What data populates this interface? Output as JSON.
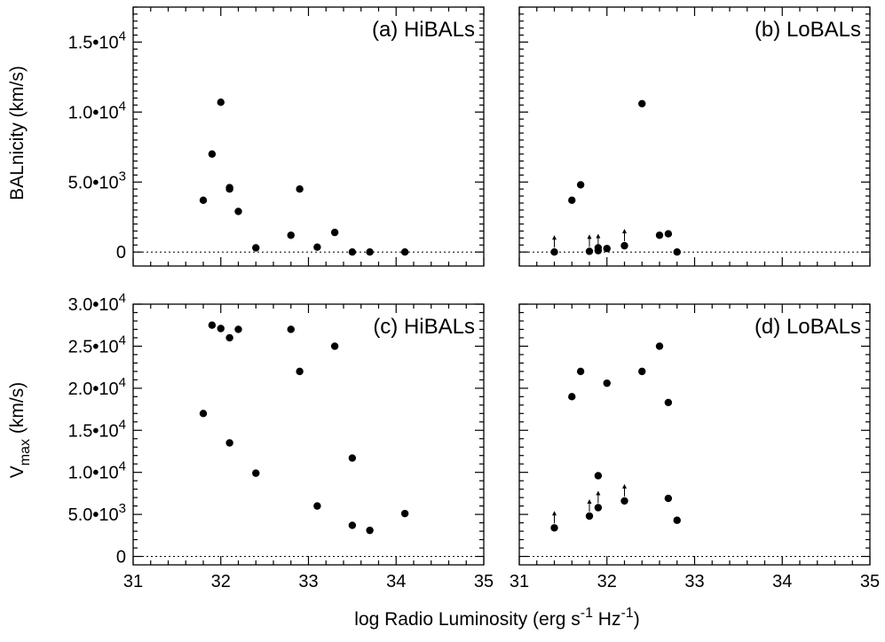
{
  "figure": {
    "xlabel": "log Radio Luminosity (erg s",
    "xlabel_sup1": "-1",
    "xlabel_mid": " Hz",
    "xlabel_sup2": "-1",
    "xlabel_end": ")",
    "ylabel_top": "BALnicity (km/s)",
    "ylabel_bottom_main": "V",
    "ylabel_bottom_sub": "max",
    "ylabel_bottom_unit": " (km/s)"
  },
  "chart_data": [
    {
      "id": "a",
      "type": "scatter",
      "title": "(a) HiBALs",
      "xlim": [
        31,
        35
      ],
      "ylim": [
        -1000,
        17500
      ],
      "xticks": [
        31,
        32,
        33,
        34,
        35
      ],
      "yticks": [
        {
          "value": 0,
          "label": "0"
        },
        {
          "value": 5000,
          "mantissa": "5.0",
          "exp": "3"
        },
        {
          "value": 10000,
          "mantissa": "1.0",
          "exp": "4"
        },
        {
          "value": 15000,
          "mantissa": "1.5",
          "exp": "4"
        }
      ],
      "points": [
        {
          "x": 31.8,
          "y": 3700
        },
        {
          "x": 31.9,
          "y": 7000
        },
        {
          "x": 32.0,
          "y": 10700
        },
        {
          "x": 32.1,
          "y": 4500
        },
        {
          "x": 32.1,
          "y": 4600
        },
        {
          "x": 32.2,
          "y": 2900
        },
        {
          "x": 32.4,
          "y": 300
        },
        {
          "x": 32.8,
          "y": 1200
        },
        {
          "x": 32.9,
          "y": 4500
        },
        {
          "x": 33.1,
          "y": 350
        },
        {
          "x": 33.3,
          "y": 1400
        },
        {
          "x": 33.5,
          "y": 0
        },
        {
          "x": 33.7,
          "y": 0
        },
        {
          "x": 34.1,
          "y": 0
        }
      ]
    },
    {
      "id": "b",
      "type": "scatter",
      "title": "(b) LoBALs",
      "xlim": [
        31,
        35
      ],
      "ylim": [
        -1000,
        17500
      ],
      "xticks": [
        31,
        32,
        33,
        34,
        35
      ],
      "points": [
        {
          "x": 31.4,
          "y": 0,
          "lower_limit": true
        },
        {
          "x": 31.6,
          "y": 3700
        },
        {
          "x": 31.7,
          "y": 4800
        },
        {
          "x": 31.8,
          "y": 50,
          "lower_limit": true
        },
        {
          "x": 31.9,
          "y": 100,
          "lower_limit": true
        },
        {
          "x": 31.9,
          "y": 300
        },
        {
          "x": 32.0,
          "y": 250
        },
        {
          "x": 32.2,
          "y": 450,
          "lower_limit": true
        },
        {
          "x": 32.4,
          "y": 10600
        },
        {
          "x": 32.6,
          "y": 1200
        },
        {
          "x": 32.7,
          "y": 1300
        },
        {
          "x": 32.8,
          "y": 0
        }
      ]
    },
    {
      "id": "c",
      "type": "scatter",
      "title": "(c) HiBALs",
      "xlim": [
        31,
        35
      ],
      "ylim": [
        -1000,
        30000
      ],
      "xticks": [
        31,
        32,
        33,
        34,
        35
      ],
      "yticks": [
        {
          "value": 0,
          "label": "0"
        },
        {
          "value": 5000,
          "mantissa": "5.0",
          "exp": "3"
        },
        {
          "value": 10000,
          "mantissa": "1.0",
          "exp": "4"
        },
        {
          "value": 15000,
          "mantissa": "1.5",
          "exp": "4"
        },
        {
          "value": 20000,
          "mantissa": "2.0",
          "exp": "4"
        },
        {
          "value": 25000,
          "mantissa": "2.5",
          "exp": "4"
        },
        {
          "value": 30000,
          "mantissa": "3.0",
          "exp": "4"
        }
      ],
      "points": [
        {
          "x": 31.8,
          "y": 17000
        },
        {
          "x": 31.9,
          "y": 27500
        },
        {
          "x": 32.0,
          "y": 27100
        },
        {
          "x": 32.1,
          "y": 26000
        },
        {
          "x": 32.1,
          "y": 13500
        },
        {
          "x": 32.2,
          "y": 27000
        },
        {
          "x": 32.4,
          "y": 9900
        },
        {
          "x": 32.8,
          "y": 27000
        },
        {
          "x": 32.9,
          "y": 22000
        },
        {
          "x": 33.1,
          "y": 6000
        },
        {
          "x": 33.3,
          "y": 25000
        },
        {
          "x": 33.5,
          "y": 11700
        },
        {
          "x": 33.5,
          "y": 3700
        },
        {
          "x": 33.7,
          "y": 3100
        },
        {
          "x": 34.1,
          "y": 5100
        }
      ]
    },
    {
      "id": "d",
      "type": "scatter",
      "title": "(d) LoBALs",
      "xlim": [
        31,
        35
      ],
      "ylim": [
        -1000,
        30000
      ],
      "xticks": [
        31,
        32,
        33,
        34,
        35
      ],
      "points": [
        {
          "x": 31.4,
          "y": 3400,
          "lower_limit": true
        },
        {
          "x": 31.6,
          "y": 19000
        },
        {
          "x": 31.7,
          "y": 22000
        },
        {
          "x": 31.8,
          "y": 4800,
          "lower_limit": true
        },
        {
          "x": 31.9,
          "y": 5800,
          "lower_limit": true
        },
        {
          "x": 31.9,
          "y": 9600
        },
        {
          "x": 32.0,
          "y": 20600
        },
        {
          "x": 32.2,
          "y": 6600,
          "lower_limit": true
        },
        {
          "x": 32.4,
          "y": 22000
        },
        {
          "x": 32.6,
          "y": 25000
        },
        {
          "x": 32.7,
          "y": 18300
        },
        {
          "x": 32.7,
          "y": 6900
        },
        {
          "x": 32.8,
          "y": 4300
        }
      ]
    }
  ]
}
